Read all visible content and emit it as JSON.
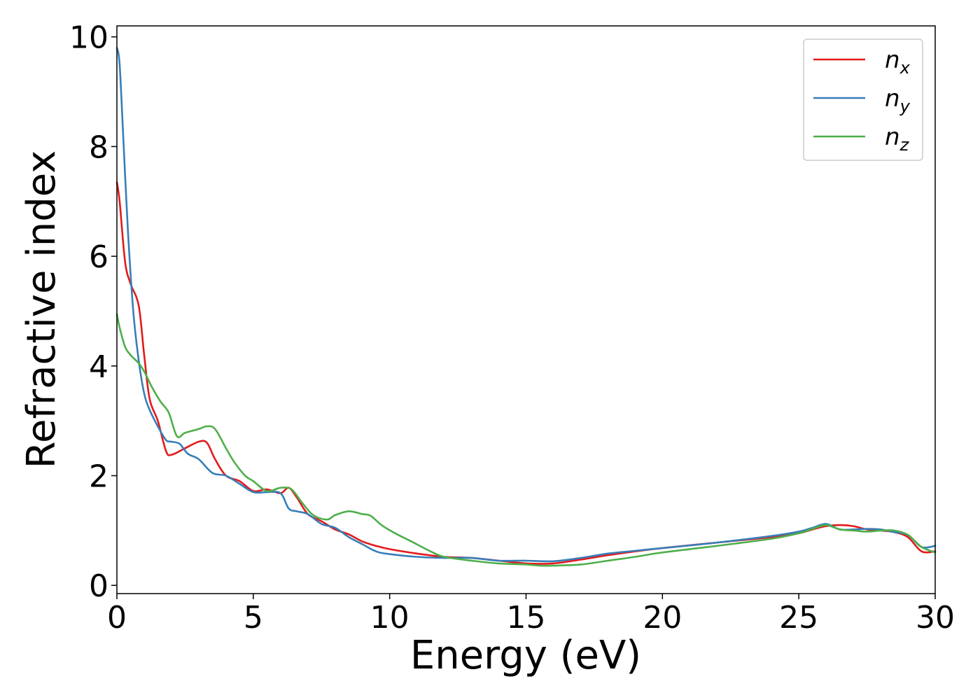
{
  "chart_data": {
    "type": "line",
    "xlabel": "Energy (eV)",
    "ylabel": "Refractive index",
    "xlim": [
      0,
      30
    ],
    "ylim": [
      -0.15,
      10.2
    ],
    "xticks": [
      0,
      5,
      10,
      15,
      20,
      25,
      30
    ],
    "xtick_labels": [
      "0",
      "5",
      "10",
      "15",
      "20",
      "25",
      "30"
    ],
    "yticks": [
      0,
      2,
      4,
      6,
      8,
      10
    ],
    "ytick_labels": [
      "0",
      "2",
      "4",
      "6",
      "8",
      "10"
    ],
    "grid": false,
    "legend_position": "top-right",
    "series": [
      {
        "name": "n_x",
        "label_main": "n",
        "label_sub": "x",
        "color": "#e31a1c",
        "x": [
          0,
          0.1,
          0.3,
          0.5,
          0.8,
          1.0,
          1.2,
          1.5,
          1.8,
          2.0,
          2.5,
          3.0,
          3.3,
          3.6,
          4.0,
          4.5,
          5.0,
          5.5,
          6.0,
          6.3,
          6.6,
          7.0,
          7.5,
          8.0,
          8.5,
          9.0,
          9.5,
          10.0,
          11.0,
          12.0,
          13.0,
          14.0,
          15.0,
          16.0,
          17.0,
          18.0,
          19.0,
          20.0,
          22.0,
          24.0,
          25.0,
          25.5,
          26.0,
          26.5,
          27.0,
          27.5,
          28.0,
          28.5,
          29.0,
          29.5,
          30.0
        ],
        "y": [
          7.35,
          7.0,
          5.9,
          5.5,
          5.1,
          4.2,
          3.4,
          3.0,
          2.45,
          2.38,
          2.5,
          2.62,
          2.6,
          2.3,
          2.0,
          1.9,
          1.72,
          1.75,
          1.68,
          1.78,
          1.6,
          1.3,
          1.17,
          1.02,
          0.93,
          0.8,
          0.72,
          0.66,
          0.58,
          0.52,
          0.5,
          0.45,
          0.4,
          0.4,
          0.47,
          0.55,
          0.62,
          0.68,
          0.78,
          0.88,
          0.95,
          1.02,
          1.08,
          1.1,
          1.08,
          1.02,
          1.0,
          0.97,
          0.88,
          0.62,
          0.62
        ]
      },
      {
        "name": "n_y",
        "label_main": "n",
        "label_sub": "y",
        "color": "#377eb8",
        "x": [
          0,
          0.1,
          0.25,
          0.4,
          0.6,
          0.8,
          1.0,
          1.2,
          1.5,
          1.8,
          2.0,
          2.3,
          2.6,
          3.0,
          3.5,
          4.0,
          4.5,
          5.0,
          5.5,
          6.0,
          6.3,
          6.6,
          7.0,
          7.5,
          8.0,
          8.5,
          9.0,
          9.5,
          10.0,
          11.0,
          12.0,
          13.0,
          14.0,
          15.0,
          16.0,
          17.0,
          18.0,
          19.0,
          20.0,
          22.0,
          24.0,
          25.0,
          25.5,
          26.0,
          26.5,
          27.0,
          27.5,
          28.0,
          28.5,
          29.0,
          29.5,
          30.0
        ],
        "y": [
          9.8,
          9.5,
          8.0,
          6.5,
          5.0,
          4.1,
          3.5,
          3.2,
          2.9,
          2.65,
          2.62,
          2.58,
          2.4,
          2.3,
          2.05,
          2.0,
          1.85,
          1.7,
          1.7,
          1.68,
          1.4,
          1.35,
          1.3,
          1.12,
          1.05,
          0.88,
          0.75,
          0.62,
          0.57,
          0.52,
          0.5,
          0.5,
          0.45,
          0.45,
          0.44,
          0.5,
          0.58,
          0.63,
          0.68,
          0.78,
          0.9,
          0.98,
          1.05,
          1.12,
          1.02,
          1.02,
          1.03,
          1.02,
          0.97,
          0.92,
          0.7,
          0.72
        ]
      },
      {
        "name": "n_z",
        "label_main": "n",
        "label_sub": "z",
        "color": "#4daf4a",
        "x": [
          0,
          0.1,
          0.3,
          0.5,
          0.8,
          1.0,
          1.3,
          1.6,
          1.9,
          2.2,
          2.5,
          3.0,
          3.3,
          3.6,
          4.0,
          4.3,
          4.7,
          5.0,
          5.5,
          6.0,
          6.4,
          6.8,
          7.2,
          7.7,
          8.0,
          8.5,
          9.0,
          9.3,
          9.7,
          10.2,
          10.8,
          11.5,
          12.0,
          13.0,
          14.0,
          15.0,
          15.5,
          16.0,
          17.0,
          18.0,
          19.0,
          20.0,
          22.0,
          24.0,
          25.0,
          25.5,
          26.0,
          26.5,
          27.0,
          27.5,
          28.0,
          28.5,
          29.0,
          29.5,
          30.0
        ],
        "y": [
          4.95,
          4.7,
          4.35,
          4.2,
          4.05,
          3.9,
          3.6,
          3.35,
          3.15,
          2.72,
          2.78,
          2.85,
          2.9,
          2.85,
          2.5,
          2.25,
          2.0,
          1.9,
          1.72,
          1.78,
          1.75,
          1.5,
          1.28,
          1.2,
          1.28,
          1.35,
          1.3,
          1.27,
          1.1,
          0.95,
          0.8,
          0.62,
          0.52,
          0.45,
          0.4,
          0.38,
          0.36,
          0.36,
          0.38,
          0.45,
          0.52,
          0.6,
          0.72,
          0.85,
          0.95,
          1.03,
          1.1,
          1.02,
          1.0,
          0.98,
          1.0,
          1.0,
          0.92,
          0.7,
          0.6
        ]
      }
    ]
  }
}
